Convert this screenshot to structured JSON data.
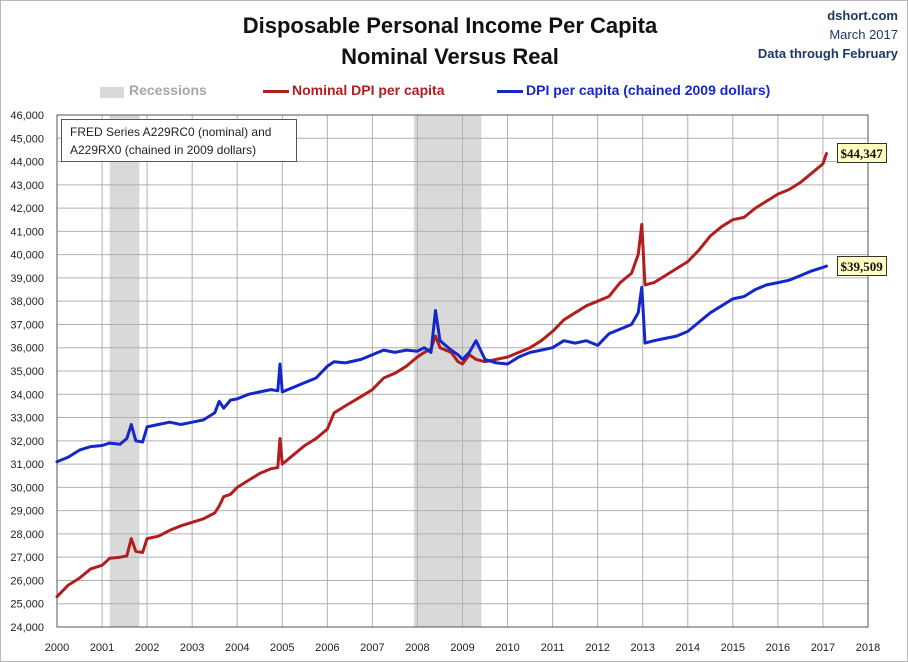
{
  "title_line1": "Disposable Personal Income Per Capita",
  "title_line2": "Nominal Versus Real",
  "credit": {
    "source": "dshort.com",
    "date": "March 2017",
    "through": "Data through February"
  },
  "legend": {
    "recessions": "Recessions",
    "nominal": "Nominal DPI per capita",
    "real": "DPI per capita (chained 2009 dollars)"
  },
  "note": {
    "line1": "FRED Series A229RC0 (nominal) and",
    "line2": "A229RX0 (chained in 2009 dollars)"
  },
  "callouts": {
    "nominal": "$44,347",
    "real": "$39,509"
  },
  "colors": {
    "nominal": "#b01e1e",
    "real": "#1428c8",
    "recession": "#d9d9d9",
    "grid": "#b0b0b0"
  },
  "chart_data": {
    "type": "line",
    "title": "Disposable Personal Income Per Capita Nominal Versus Real",
    "xlabel": "",
    "ylabel": "",
    "xlim": [
      2000,
      2018
    ],
    "ylim": [
      24000,
      46000
    ],
    "grid": true,
    "legend_position": "top",
    "x_ticks": [
      "2000",
      "2001",
      "2002",
      "2003",
      "2004",
      "2005",
      "2006",
      "2007",
      "2008",
      "2009",
      "2010",
      "2011",
      "2012",
      "2013",
      "2014",
      "2015",
      "2016",
      "2017",
      "2018"
    ],
    "y_ticks": [
      "24,000",
      "25,000",
      "26,000",
      "27,000",
      "28,000",
      "29,000",
      "30,000",
      "31,000",
      "32,000",
      "33,000",
      "34,000",
      "35,000",
      "36,000",
      "37,000",
      "38,000",
      "39,000",
      "40,000",
      "41,000",
      "42,000",
      "43,000",
      "44,000",
      "45,000",
      "46,000"
    ],
    "recessions": [
      [
        2001.17,
        2001.83
      ],
      [
        2007.92,
        2009.42
      ]
    ],
    "series": [
      {
        "name": "Nominal DPI per capita",
        "points": [
          [
            2000.0,
            25300
          ],
          [
            2000.25,
            25800
          ],
          [
            2000.5,
            26100
          ],
          [
            2000.75,
            26500
          ],
          [
            2001.0,
            26650
          ],
          [
            2001.17,
            26950
          ],
          [
            2001.4,
            27000
          ],
          [
            2001.55,
            27050
          ],
          [
            2001.65,
            27800
          ],
          [
            2001.75,
            27250
          ],
          [
            2001.9,
            27200
          ],
          [
            2002.0,
            27800
          ],
          [
            2002.25,
            27900
          ],
          [
            2002.5,
            28150
          ],
          [
            2002.75,
            28350
          ],
          [
            2003.0,
            28500
          ],
          [
            2003.25,
            28650
          ],
          [
            2003.5,
            28900
          ],
          [
            2003.6,
            29200
          ],
          [
            2003.7,
            29600
          ],
          [
            2003.85,
            29700
          ],
          [
            2004.0,
            30000
          ],
          [
            2004.25,
            30300
          ],
          [
            2004.5,
            30600
          ],
          [
            2004.75,
            30800
          ],
          [
            2004.9,
            30850
          ],
          [
            2004.95,
            32100
          ],
          [
            2005.0,
            31000
          ],
          [
            2005.25,
            31400
          ],
          [
            2005.5,
            31800
          ],
          [
            2005.75,
            32100
          ],
          [
            2006.0,
            32500
          ],
          [
            2006.15,
            33200
          ],
          [
            2006.4,
            33500
          ],
          [
            2006.75,
            33900
          ],
          [
            2007.0,
            34200
          ],
          [
            2007.25,
            34700
          ],
          [
            2007.5,
            34900
          ],
          [
            2007.75,
            35200
          ],
          [
            2008.0,
            35600
          ],
          [
            2008.15,
            35800
          ],
          [
            2008.3,
            35950
          ],
          [
            2008.4,
            36500
          ],
          [
            2008.5,
            36000
          ],
          [
            2008.75,
            35800
          ],
          [
            2008.9,
            35400
          ],
          [
            2009.0,
            35300
          ],
          [
            2009.15,
            35700
          ],
          [
            2009.3,
            35500
          ],
          [
            2009.5,
            35400
          ],
          [
            2009.75,
            35500
          ],
          [
            2010.0,
            35600
          ],
          [
            2010.25,
            35800
          ],
          [
            2010.5,
            36000
          ],
          [
            2010.75,
            36300
          ],
          [
            2011.0,
            36700
          ],
          [
            2011.25,
            37200
          ],
          [
            2011.5,
            37500
          ],
          [
            2011.75,
            37800
          ],
          [
            2012.0,
            38000
          ],
          [
            2012.25,
            38200
          ],
          [
            2012.5,
            38800
          ],
          [
            2012.75,
            39200
          ],
          [
            2012.9,
            40000
          ],
          [
            2012.98,
            41300
          ],
          [
            2013.05,
            38700
          ],
          [
            2013.25,
            38800
          ],
          [
            2013.5,
            39100
          ],
          [
            2013.75,
            39400
          ],
          [
            2014.0,
            39700
          ],
          [
            2014.25,
            40200
          ],
          [
            2014.5,
            40800
          ],
          [
            2014.75,
            41200
          ],
          [
            2015.0,
            41500
          ],
          [
            2015.25,
            41600
          ],
          [
            2015.5,
            42000
          ],
          [
            2015.75,
            42300
          ],
          [
            2016.0,
            42600
          ],
          [
            2016.25,
            42800
          ],
          [
            2016.5,
            43100
          ],
          [
            2016.75,
            43500
          ],
          [
            2017.0,
            43900
          ],
          [
            2017.08,
            44347
          ]
        ]
      },
      {
        "name": "DPI per capita (chained 2009 dollars)",
        "points": [
          [
            2000.0,
            31100
          ],
          [
            2000.25,
            31300
          ],
          [
            2000.5,
            31600
          ],
          [
            2000.75,
            31750
          ],
          [
            2001.0,
            31800
          ],
          [
            2001.17,
            31900
          ],
          [
            2001.4,
            31850
          ],
          [
            2001.55,
            32100
          ],
          [
            2001.65,
            32700
          ],
          [
            2001.75,
            32000
          ],
          [
            2001.9,
            31950
          ],
          [
            2002.0,
            32600
          ],
          [
            2002.25,
            32700
          ],
          [
            2002.5,
            32800
          ],
          [
            2002.75,
            32700
          ],
          [
            2003.0,
            32800
          ],
          [
            2003.25,
            32900
          ],
          [
            2003.5,
            33200
          ],
          [
            2003.6,
            33700
          ],
          [
            2003.7,
            33400
          ],
          [
            2003.85,
            33750
          ],
          [
            2004.0,
            33800
          ],
          [
            2004.25,
            34000
          ],
          [
            2004.5,
            34100
          ],
          [
            2004.75,
            34200
          ],
          [
            2004.9,
            34150
          ],
          [
            2004.95,
            35300
          ],
          [
            2005.0,
            34100
          ],
          [
            2005.25,
            34300
          ],
          [
            2005.5,
            34500
          ],
          [
            2005.75,
            34700
          ],
          [
            2006.0,
            35200
          ],
          [
            2006.15,
            35400
          ],
          [
            2006.4,
            35350
          ],
          [
            2006.75,
            35500
          ],
          [
            2007.0,
            35700
          ],
          [
            2007.25,
            35900
          ],
          [
            2007.5,
            35800
          ],
          [
            2007.75,
            35900
          ],
          [
            2008.0,
            35850
          ],
          [
            2008.15,
            36000
          ],
          [
            2008.3,
            35800
          ],
          [
            2008.4,
            37600
          ],
          [
            2008.5,
            36300
          ],
          [
            2008.75,
            35900
          ],
          [
            2008.9,
            35700
          ],
          [
            2009.0,
            35500
          ],
          [
            2009.15,
            35800
          ],
          [
            2009.3,
            36300
          ],
          [
            2009.5,
            35500
          ],
          [
            2009.75,
            35350
          ],
          [
            2010.0,
            35300
          ],
          [
            2010.25,
            35600
          ],
          [
            2010.5,
            35800
          ],
          [
            2010.75,
            35900
          ],
          [
            2011.0,
            36000
          ],
          [
            2011.25,
            36300
          ],
          [
            2011.5,
            36200
          ],
          [
            2011.75,
            36300
          ],
          [
            2012.0,
            36100
          ],
          [
            2012.25,
            36600
          ],
          [
            2012.5,
            36800
          ],
          [
            2012.75,
            37000
          ],
          [
            2012.9,
            37500
          ],
          [
            2012.98,
            38600
          ],
          [
            2013.05,
            36200
          ],
          [
            2013.25,
            36300
          ],
          [
            2013.5,
            36400
          ],
          [
            2013.75,
            36500
          ],
          [
            2014.0,
            36700
          ],
          [
            2014.25,
            37100
          ],
          [
            2014.5,
            37500
          ],
          [
            2014.75,
            37800
          ],
          [
            2015.0,
            38100
          ],
          [
            2015.25,
            38200
          ],
          [
            2015.5,
            38500
          ],
          [
            2015.75,
            38700
          ],
          [
            2016.0,
            38800
          ],
          [
            2016.25,
            38900
          ],
          [
            2016.5,
            39100
          ],
          [
            2016.75,
            39300
          ],
          [
            2017.0,
            39450
          ],
          [
            2017.08,
            39509
          ]
        ]
      }
    ]
  }
}
